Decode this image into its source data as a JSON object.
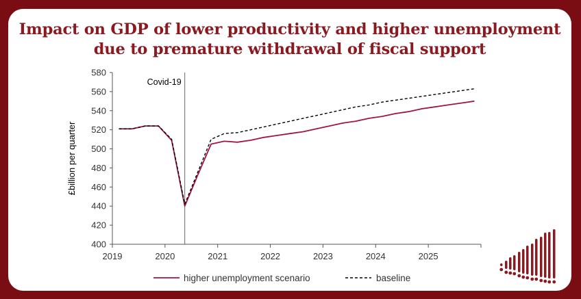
{
  "title_line1": "Impact on GDP of lower productivity and higher unemployment",
  "title_line2": "due to premature withdrawal of fiscal support",
  "brand_icon": "bar-chart-logo-icon",
  "colors": {
    "background": "#7a0d14",
    "title": "#8b1a20",
    "series_unemployment": "#a0153e",
    "series_baseline": "#000000"
  },
  "chart_data": {
    "type": "line",
    "title": "Impact on GDP of lower productivity and higher unemployment due to premature withdrawal of fiscal support",
    "ylabel": "£billion per quarter",
    "xlabel": "",
    "ylim": [
      400,
      580
    ],
    "yticks": [
      400,
      420,
      440,
      460,
      480,
      500,
      520,
      540,
      560,
      580
    ],
    "xticks": [
      "2019",
      "2020",
      "2021",
      "2022",
      "2023",
      "2024",
      "2025"
    ],
    "annotation": {
      "label": "Covid-19",
      "at": "2020 Q2"
    },
    "legend_position": "bottom",
    "grid": false,
    "x": [
      "2019 Q1",
      "2019 Q2",
      "2019 Q3",
      "2019 Q4",
      "2020 Q1",
      "2020 Q2",
      "2020 Q3",
      "2020 Q4",
      "2021 Q1",
      "2021 Q2",
      "2021 Q3",
      "2021 Q4",
      "2022 Q1",
      "2022 Q2",
      "2022 Q3",
      "2022 Q4",
      "2023 Q1",
      "2023 Q2",
      "2023 Q3",
      "2023 Q4",
      "2024 Q1",
      "2024 Q2",
      "2024 Q3",
      "2024 Q4",
      "2025 Q1",
      "2025 Q2",
      "2025 Q3",
      "2025 Q4"
    ],
    "series": [
      {
        "name": "higher unemployment scenario",
        "style": "solid",
        "values": [
          521,
          521,
          524,
          524,
          509,
          440,
          473,
          505,
          508,
          507,
          509,
          512,
          514,
          516,
          518,
          521,
          524,
          527,
          529,
          532,
          534,
          537,
          539,
          542,
          544,
          546,
          548,
          550
        ]
      },
      {
        "name": "baseline",
        "style": "dashed",
        "values": [
          521,
          521,
          524,
          524,
          510,
          442,
          476,
          510,
          516,
          517,
          520,
          523,
          526,
          529,
          532,
          535,
          538,
          541,
          544,
          546,
          549,
          551,
          553,
          555,
          557,
          559,
          561,
          563
        ]
      }
    ]
  }
}
